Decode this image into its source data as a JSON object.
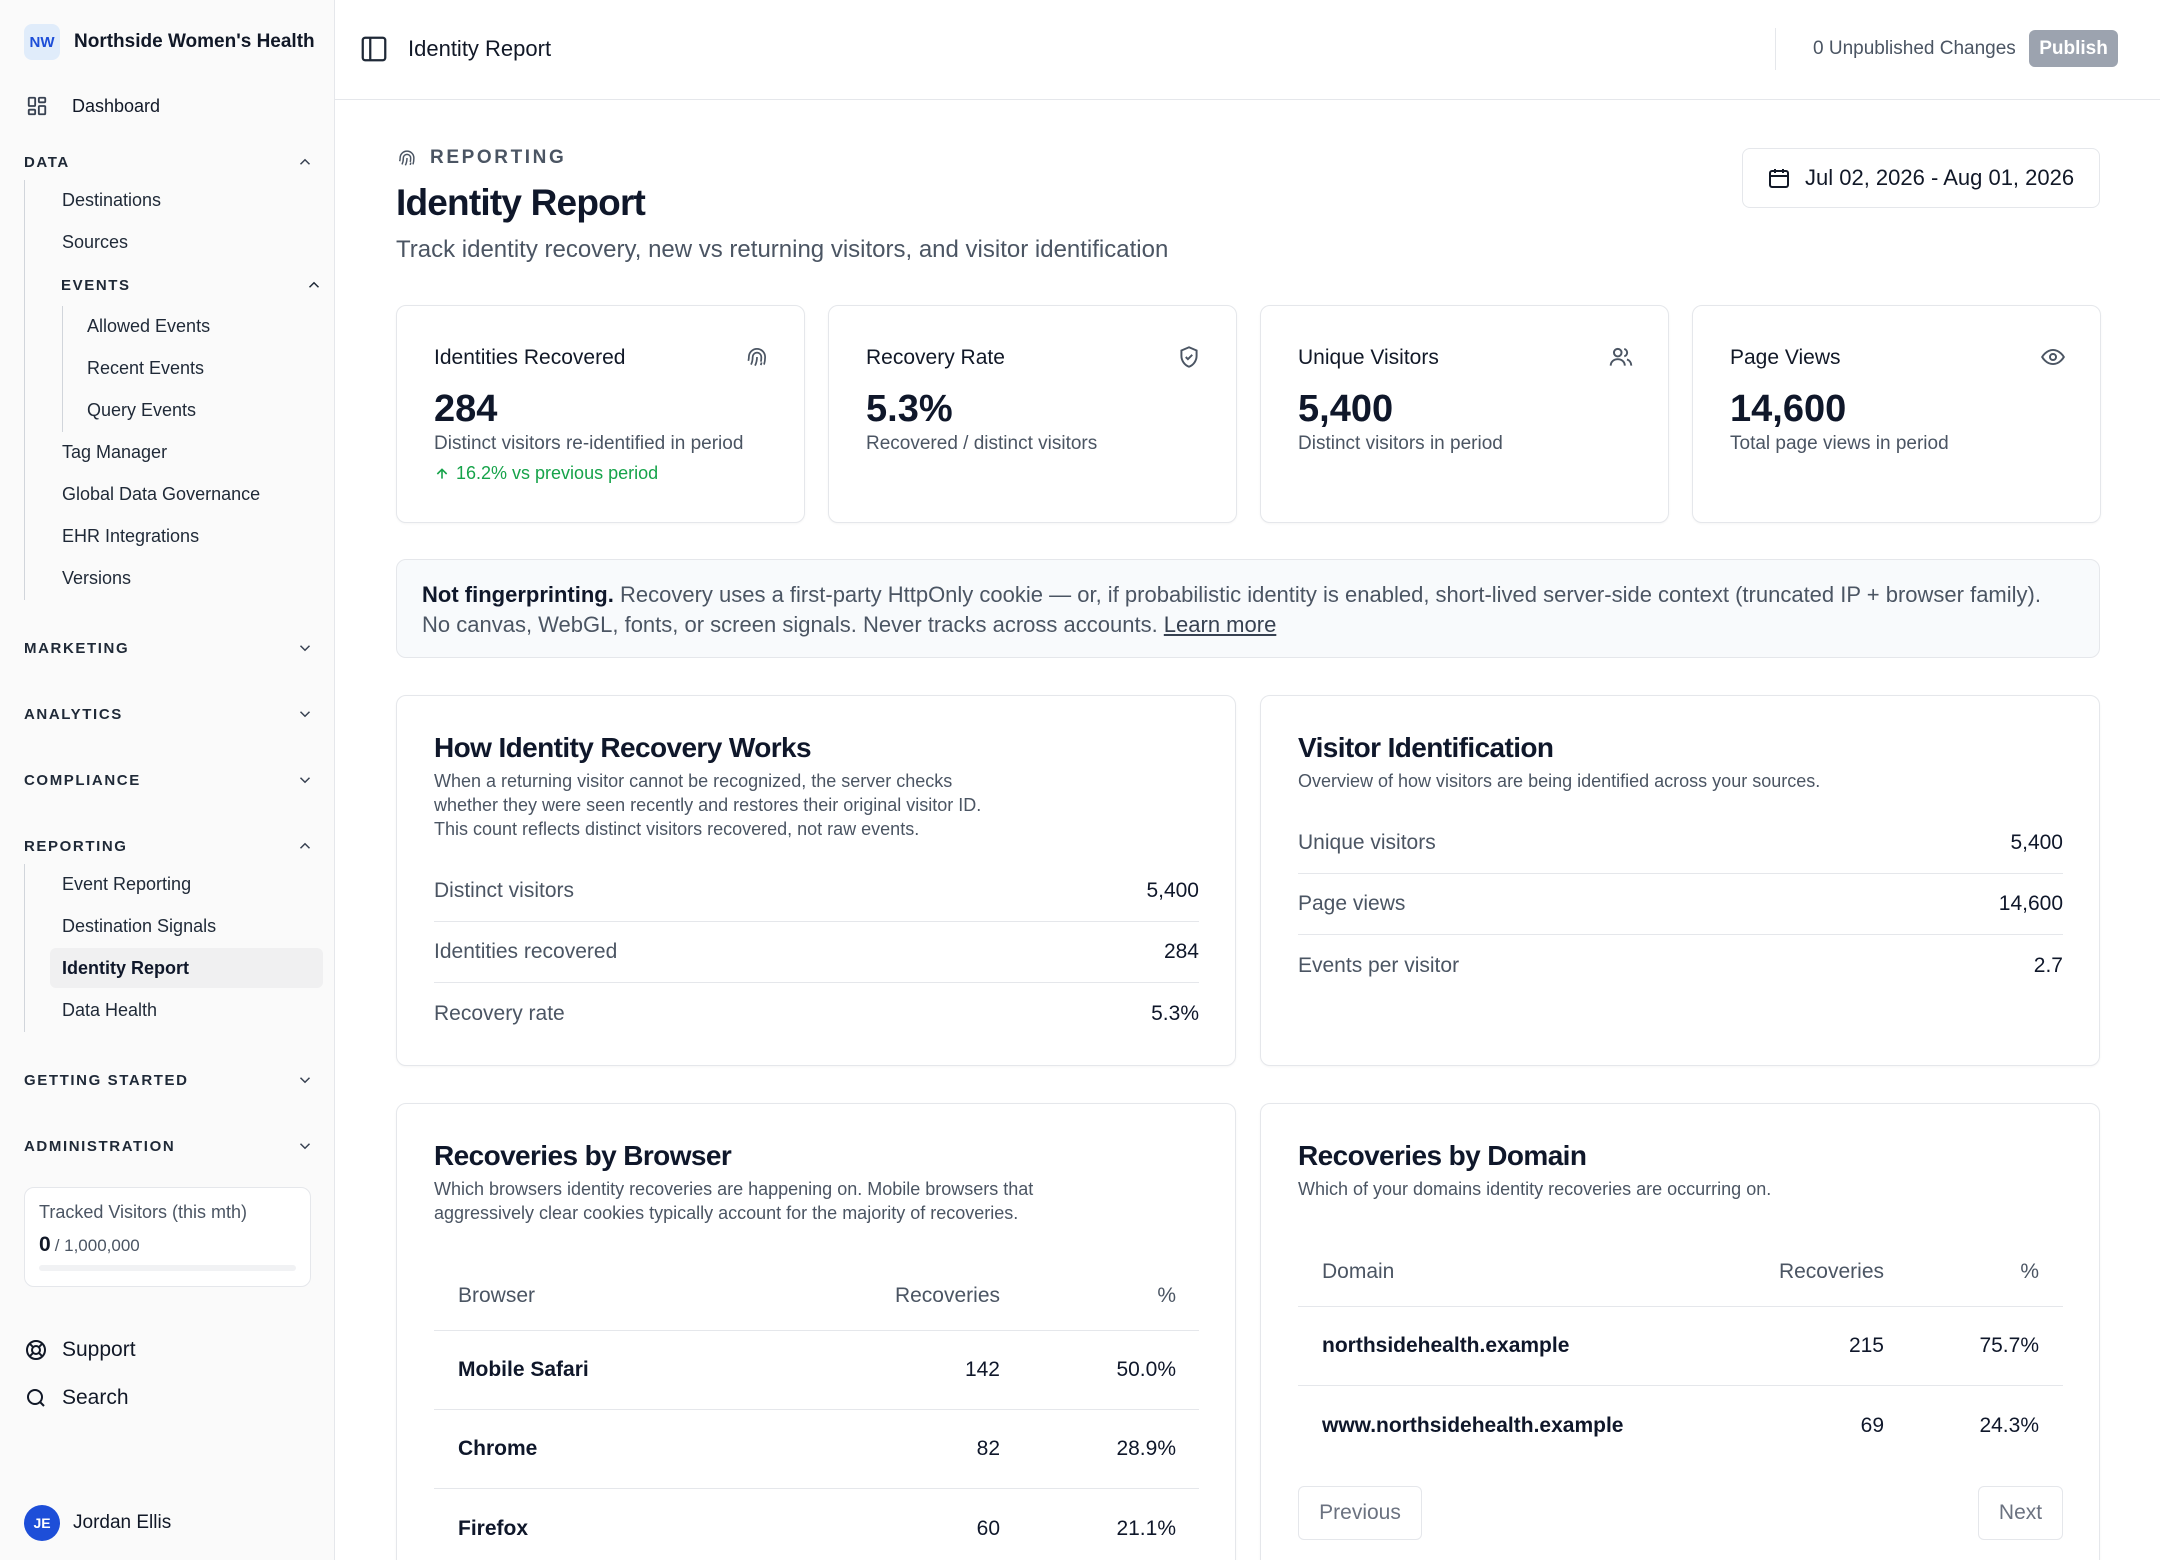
{
  "org": {
    "initials": "NW",
    "name": "Northside Women's Health"
  },
  "sidebar": {
    "dashboard_label": "Dashboard",
    "sections": {
      "data": "DATA",
      "events": "EVENTS",
      "marketing": "MARKETING",
      "analytics": "ANALYTICS",
      "compliance": "COMPLIANCE",
      "reporting": "REPORTING",
      "getting_started": "GETTING STARTED",
      "administration": "ADMINISTRATION"
    },
    "data_items": [
      "Destinations",
      "Sources"
    ],
    "event_items": [
      "Allowed Events",
      "Recent Events",
      "Query Events"
    ],
    "data_items_after": [
      "Tag Manager",
      "Global Data Governance",
      "EHR Integrations",
      "Versions"
    ],
    "reporting_items": [
      "Event Reporting",
      "Destination Signals",
      "Identity Report",
      "Data Health"
    ],
    "active_item": "Identity Report",
    "tracked": {
      "label": "Tracked Visitors (this mth)",
      "value": "0",
      "limit": "/ 1,000,000",
      "fill_fraction": 0
    },
    "support_label": "Support",
    "search_label": "Search",
    "user": {
      "initials": "JE",
      "name": "Jordan Ellis"
    }
  },
  "topbar": {
    "title": "Identity Report",
    "unpublished": "0 Unpublished Changes",
    "publish_label": "Publish"
  },
  "header": {
    "kicker": "REPORTING",
    "title": "Identity Report",
    "subtitle": "Track identity recovery, new vs returning visitors, and visitor identification",
    "date_range": "Jul 02, 2026 - Aug 01, 2026"
  },
  "stats": [
    {
      "label": "Identities Recovered",
      "icon": "fingerprint-icon",
      "value": "284",
      "desc": "Distinct visitors re-identified in period",
      "trend": "16.2% vs previous period"
    },
    {
      "label": "Recovery Rate",
      "icon": "shield-check-icon",
      "value": "5.3%",
      "desc": "Recovered / distinct visitors"
    },
    {
      "label": "Unique Visitors",
      "icon": "users-icon",
      "value": "5,400",
      "desc": "Distinct visitors in period"
    },
    {
      "label": "Page Views",
      "icon": "eye-icon",
      "value": "14,600",
      "desc": "Total page views in period"
    }
  ],
  "notice": {
    "bold": "Not fingerprinting.",
    "text": " Recovery uses a first-party HttpOnly cookie — or, if probabilistic identity is enabled, short-lived server-side context (truncated IP + browser family). No canvas, WebGL, fonts, or screen signals. Never tracks across accounts. ",
    "link": "Learn more"
  },
  "how_card": {
    "title": "How Identity Recovery Works",
    "desc": "When a returning visitor cannot be recognized, the server checks whether they were seen recently and restores their original visitor ID. This count reflects distinct visitors recovered, not raw events.",
    "rows": [
      {
        "label": "Distinct visitors",
        "value": "5,400"
      },
      {
        "label": "Identities recovered",
        "value": "284"
      },
      {
        "label": "Recovery rate",
        "value": "5.3%"
      }
    ]
  },
  "visitor_card": {
    "title": "Visitor Identification",
    "desc": "Overview of how visitors are being identified across your sources.",
    "rows": [
      {
        "label": "Unique visitors",
        "value": "5,400"
      },
      {
        "label": "Page views",
        "value": "14,600"
      },
      {
        "label": "Events per visitor",
        "value": "2.7"
      }
    ]
  },
  "browser_card": {
    "title": "Recoveries by Browser",
    "desc": "Which browsers identity recoveries are happening on. Mobile browsers that aggressively clear cookies typically account for the majority of recoveries.",
    "columns": [
      "Browser",
      "Recoveries",
      "%"
    ],
    "rows": [
      {
        "name": "Mobile Safari",
        "count": "142",
        "pct": "50.0%"
      },
      {
        "name": "Chrome",
        "count": "82",
        "pct": "28.9%"
      },
      {
        "name": "Firefox",
        "count": "60",
        "pct": "21.1%"
      }
    ]
  },
  "domain_card": {
    "title": "Recoveries by Domain",
    "desc": "Which of your domains identity recoveries are occurring on.",
    "columns": [
      "Domain",
      "Recoveries",
      "%"
    ],
    "rows": [
      {
        "name": "northsidehealth.example",
        "count": "215",
        "pct": "75.7%"
      },
      {
        "name": "www.northsidehealth.example",
        "count": "69",
        "pct": "24.3%"
      }
    ],
    "previous_label": "Previous",
    "next_label": "Next"
  }
}
